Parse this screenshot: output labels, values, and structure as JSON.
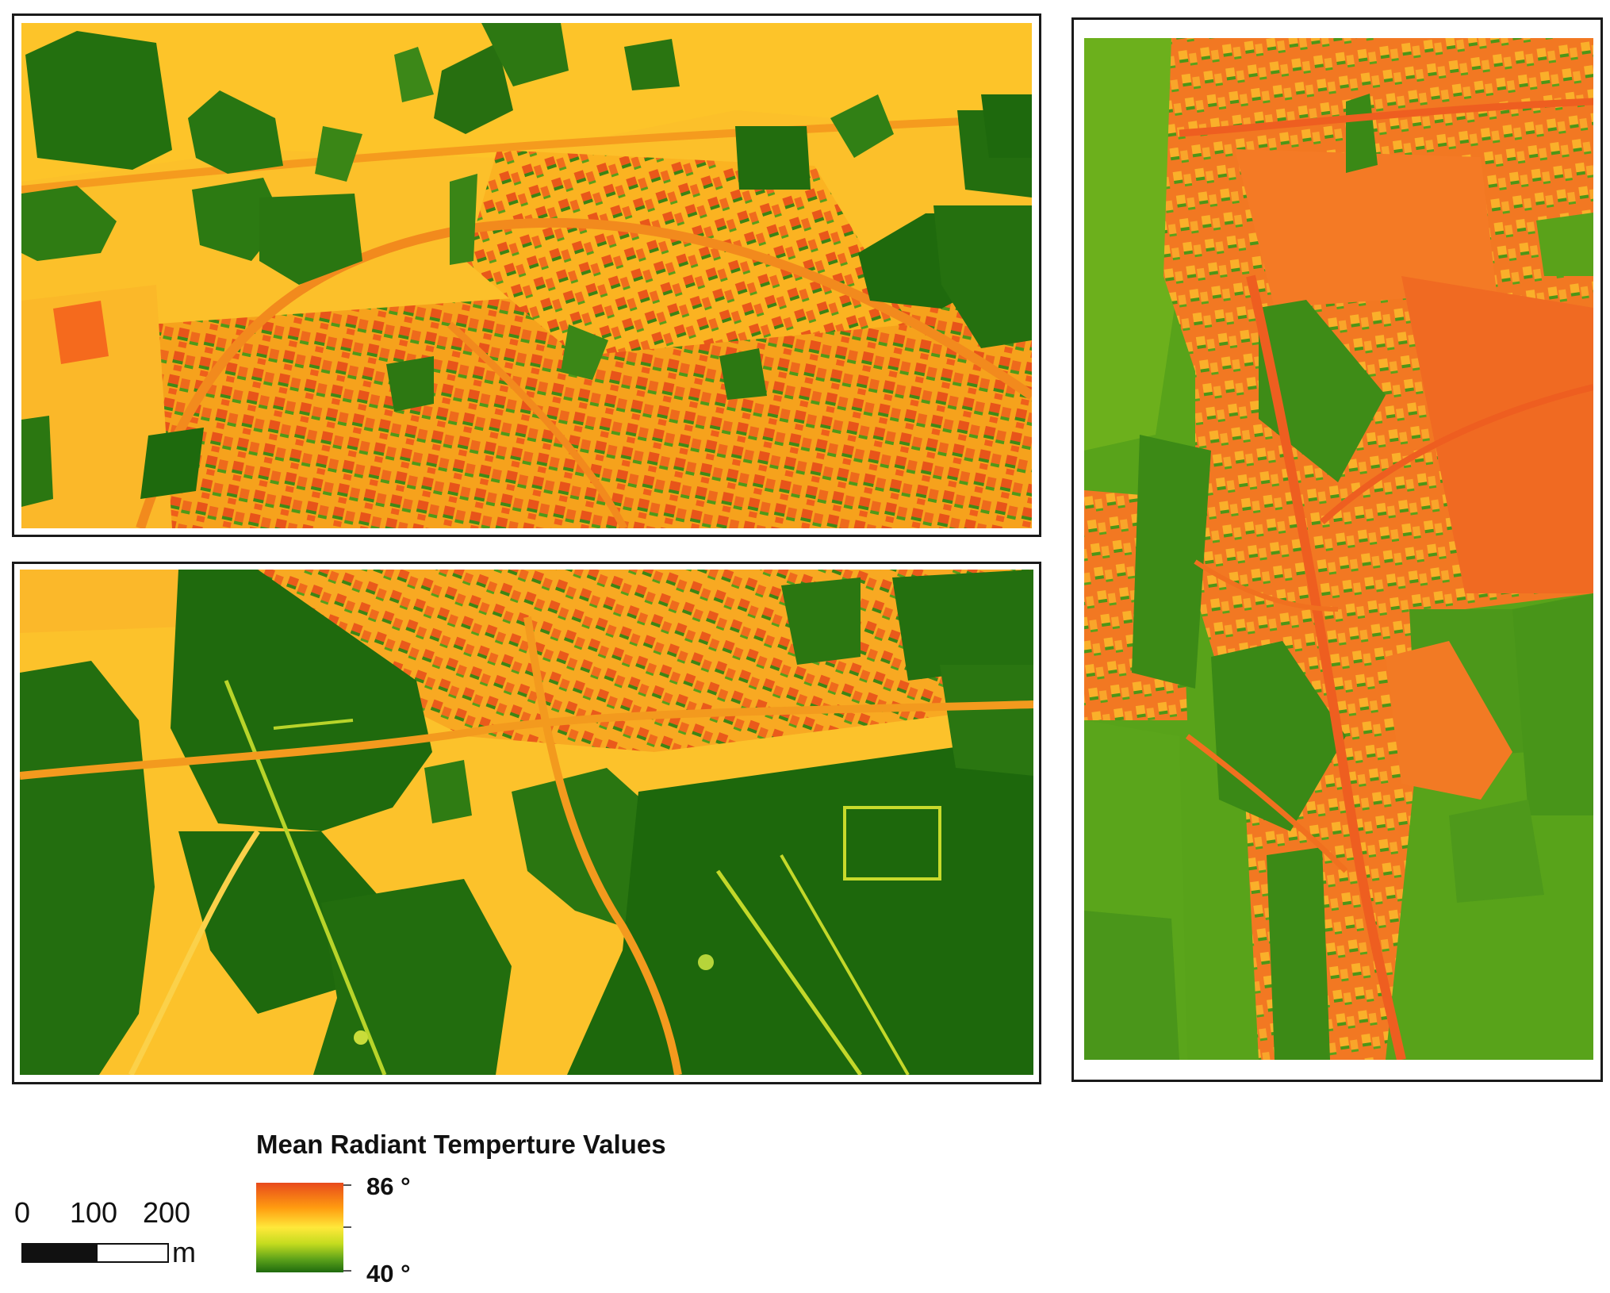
{
  "colors": {
    "high": "#e84a1c",
    "orange": "#ff9c10",
    "mid": "#ffe83a",
    "lime": "#c4dc1f",
    "green": "#5aa01a",
    "low": "#1f6a0e"
  },
  "legend": {
    "title": "Mean Radiant Temperture Values",
    "max_label": "86 °",
    "min_label": "40 °"
  },
  "scalebar": {
    "labels": [
      "0",
      "100",
      "200"
    ],
    "unit": "m"
  }
}
